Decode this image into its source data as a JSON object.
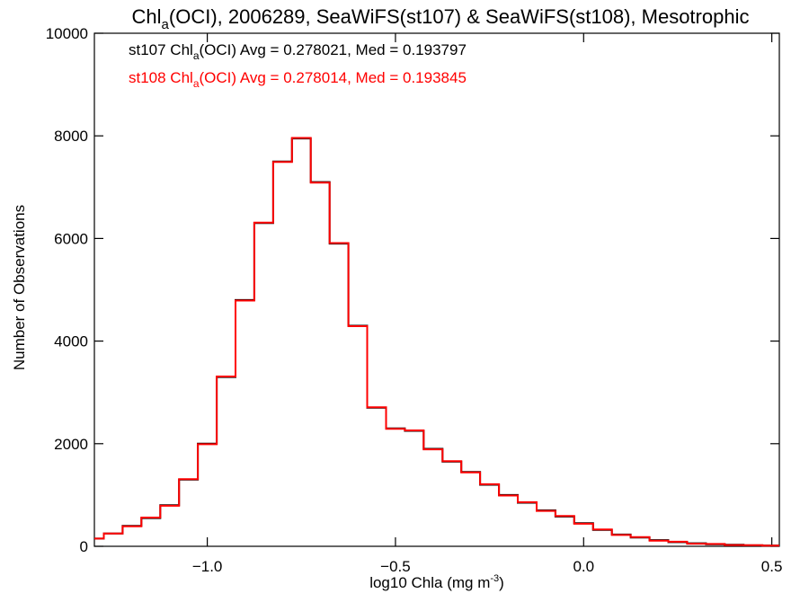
{
  "chart_data": {
    "type": "line",
    "step": true,
    "title_parts": {
      "pre": "Chl",
      "sub": "a",
      "post": "(OCI), 2006289, SeaWiFS(st107) & SeaWiFS(st108), Mesotrophic"
    },
    "xlabel_parts": {
      "pre": "log10 Chla (mg m",
      "sup": "-3",
      "post": ")"
    },
    "ylabel": "Number of Observations",
    "xlim": [
      -1.3,
      0.52
    ],
    "ylim": [
      0,
      10000
    ],
    "x_ticks": [
      -1.0,
      -0.5,
      0.0,
      0.5
    ],
    "x_tick_labels": [
      "−1.0",
      "−0.5",
      "0.0",
      "0.5"
    ],
    "y_ticks": [
      0,
      2000,
      4000,
      6000,
      8000,
      10000
    ],
    "y_tick_labels": [
      "0",
      "2000",
      "4000",
      "6000",
      "8000",
      "10000"
    ],
    "grid": false,
    "annotations": [
      {
        "pre": "st107 Chl",
        "sub": "a",
        "post": "(OCI) Avg = 0.278021, Med = 0.193797",
        "color": "#000000"
      },
      {
        "pre": "st108 Chl",
        "sub": "a",
        "post": "(OCI) Avg = 0.278014, Med = 0.193845",
        "color": "#ff0000"
      }
    ],
    "x": [
      -1.3,
      -1.25,
      -1.2,
      -1.15,
      -1.1,
      -1.05,
      -1.0,
      -0.95,
      -0.9,
      -0.85,
      -0.8,
      -0.75,
      -0.7,
      -0.65,
      -0.6,
      -0.55,
      -0.5,
      -0.45,
      -0.4,
      -0.35,
      -0.3,
      -0.25,
      -0.2,
      -0.15,
      -0.1,
      -0.05,
      0.0,
      0.05,
      0.1,
      0.15,
      0.2,
      0.25,
      0.3,
      0.35,
      0.4,
      0.45,
      0.5
    ],
    "series": [
      {
        "name": "st107",
        "color": "#000000",
        "values": [
          150,
          250,
          400,
          550,
          800,
          1300,
          2000,
          3300,
          4800,
          6300,
          7500,
          7950,
          7100,
          5900,
          4300,
          2700,
          2300,
          2250,
          1900,
          1650,
          1450,
          1200,
          1000,
          850,
          700,
          580,
          450,
          320,
          230,
          170,
          120,
          80,
          60,
          40,
          30,
          20,
          15
        ]
      },
      {
        "name": "st108",
        "color": "#ff0000",
        "values": [
          150,
          250,
          390,
          560,
          790,
          1310,
          1990,
          3310,
          4790,
          6310,
          7490,
          7960,
          7090,
          5910,
          4290,
          2710,
          2290,
          2260,
          1890,
          1660,
          1440,
          1210,
          990,
          860,
          690,
          590,
          440,
          330,
          220,
          180,
          110,
          90,
          50,
          45,
          25,
          22,
          12
        ]
      }
    ]
  }
}
